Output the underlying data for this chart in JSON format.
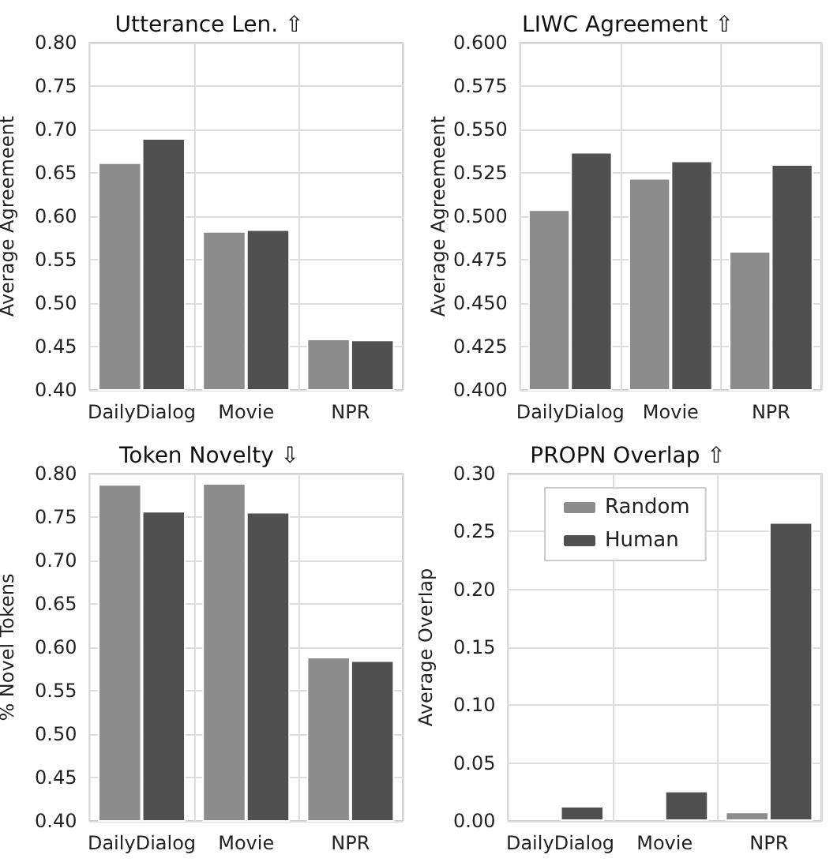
{
  "chart_data": [
    {
      "type": "bar",
      "title": "Utterance Len. ⇧",
      "ylabel": "Average Agreemeent",
      "categories": [
        "DailyDialog",
        "Movie",
        "NPR"
      ],
      "series": [
        {
          "color": "#8c8c8c",
          "values": [
            0.662,
            0.583,
            0.459
          ]
        },
        {
          "color": "#505050",
          "values": [
            0.69,
            0.585,
            0.458
          ]
        }
      ],
      "ylim": [
        0.4,
        0.8
      ],
      "yticks": [
        {
          "value": 0.4,
          "label": "0.40"
        },
        0.45,
        {
          "value": 0.5,
          "label": "0.50"
        },
        0.55,
        {
          "value": 0.6,
          "label": "0.60"
        },
        0.65,
        {
          "value": 0.7,
          "label": "0.70"
        },
        0.75,
        {
          "value": 0.8,
          "label": "0.80"
        }
      ],
      "grid": true,
      "legend": false
    },
    {
      "type": "bar",
      "title": "LIWC Agreement ⇧",
      "ylabel": "Average Agreemeent",
      "categories": [
        "DailyDialog",
        "Movie",
        "NPR"
      ],
      "series": [
        {
          "color": "#8c8c8c",
          "values": [
            0.504,
            0.522,
            0.48
          ]
        },
        {
          "color": "#505050",
          "values": [
            0.537,
            0.532,
            0.53
          ]
        }
      ],
      "ylim": [
        0.4,
        0.6
      ],
      "yticks": [
        {
          "value": 0.4,
          "label": "0.400"
        },
        0.425,
        {
          "value": 0.45,
          "label": "0.450"
        },
        0.475,
        {
          "value": 0.5,
          "label": "0.500"
        },
        0.525,
        {
          "value": 0.55,
          "label": "0.550"
        },
        0.575,
        {
          "value": 0.6,
          "label": "0.600"
        }
      ],
      "grid": true,
      "legend": false
    },
    {
      "type": "bar",
      "title": "Token Novelty ⇩",
      "ylabel": "% Novel Tokens",
      "categories": [
        "DailyDialog",
        "Movie",
        "NPR"
      ],
      "series": [
        {
          "color": "#8c8c8c",
          "values": [
            0.788,
            0.789,
            0.589
          ]
        },
        {
          "color": "#505050",
          "values": [
            0.757,
            0.756,
            0.585
          ]
        }
      ],
      "ylim": [
        0.4,
        0.8
      ],
      "yticks": [
        {
          "value": 0.4,
          "label": "0.40"
        },
        0.45,
        {
          "value": 0.5,
          "label": "0.50"
        },
        0.55,
        {
          "value": 0.6,
          "label": "0.60"
        },
        0.65,
        {
          "value": 0.7,
          "label": "0.70"
        },
        0.75,
        {
          "value": 0.8,
          "label": "0.80"
        }
      ],
      "grid": true,
      "legend": false
    },
    {
      "type": "bar",
      "title": "PROPN Overlap ⇧",
      "ylabel": "Average Overlap",
      "categories": [
        "DailyDialog",
        "Movie",
        "NPR"
      ],
      "series": [
        {
          "name": "Random",
          "color": "#8c8c8c",
          "values": [
            0,
            0,
            0.008
          ]
        },
        {
          "name": "Human",
          "color": "#505050",
          "values": [
            0.013,
            0.026,
            0.258
          ]
        }
      ],
      "ylim": [
        0,
        0.3
      ],
      "yticks": [
        {
          "value": 0,
          "label": "0.00"
        },
        0.05,
        {
          "value": 0.1,
          "label": "0.10"
        },
        0.15,
        {
          "value": 0.2,
          "label": "0.20"
        },
        0.25,
        {
          "value": 0.3,
          "label": "0.30"
        }
      ],
      "grid": true,
      "legend": "top left"
    }
  ]
}
